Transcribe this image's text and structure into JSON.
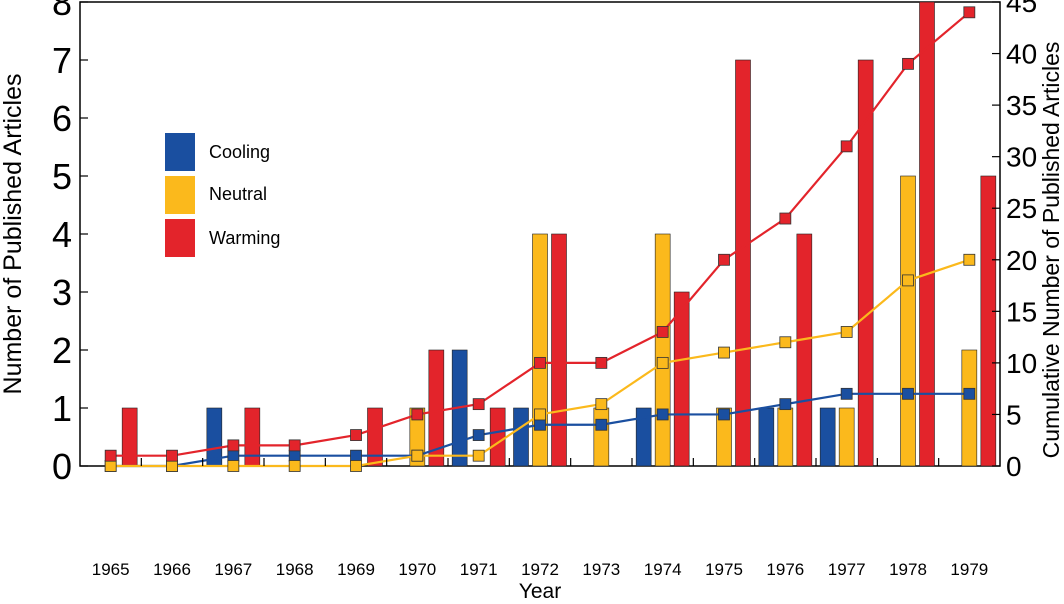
{
  "chart_data": {
    "type": "bar",
    "categories": [
      "1965",
      "1966",
      "1967",
      "1968",
      "1969",
      "1970",
      "1971",
      "1972",
      "1973",
      "1974",
      "1975",
      "1976",
      "1977",
      "1978",
      "1979"
    ],
    "xlabel": "Year",
    "ylabel": "Number of Published Articles",
    "y2label": "Cumulative Number of Published Articles",
    "ylim": [
      0,
      8
    ],
    "y2lim": [
      0,
      45
    ],
    "yticks": [
      "0",
      "1",
      "2",
      "3",
      "4",
      "5",
      "6",
      "7",
      "8"
    ],
    "y2ticks": [
      "0",
      "5",
      "10",
      "15",
      "20",
      "25",
      "30",
      "35",
      "40",
      "45"
    ],
    "legend_position": "upper-left",
    "series": [
      {
        "name": "Cooling",
        "color": "#1a4fa0",
        "values": [
          0,
          0,
          1,
          0,
          0,
          0,
          2,
          1,
          0,
          1,
          0,
          1,
          1,
          0,
          0
        ]
      },
      {
        "name": "Neutral",
        "color": "#fbb91c",
        "values": [
          0,
          0,
          0,
          0,
          0,
          1,
          0,
          4,
          1,
          4,
          1,
          1,
          1,
          5,
          2
        ]
      },
      {
        "name": "Warming",
        "color": "#e3242b",
        "values": [
          1,
          0,
          1,
          0,
          1,
          2,
          1,
          4,
          0,
          3,
          7,
          4,
          7,
          8,
          5
        ]
      }
    ],
    "cumulative_series": [
      {
        "name": "Cooling",
        "color": "#1a4fa0",
        "marker_fill": "#1a4fa0",
        "values": [
          0,
          0,
          1,
          1,
          1,
          1,
          3,
          4,
          4,
          5,
          5,
          6,
          7,
          7,
          7
        ]
      },
      {
        "name": "Neutral",
        "color": "#fbb91c",
        "marker_fill": "#fbb91c",
        "values": [
          0,
          0,
          0,
          0,
          0,
          1,
          1,
          5,
          6,
          10,
          11,
          12,
          13,
          18,
          20
        ]
      },
      {
        "name": "Warming",
        "color": "#e3242b",
        "marker_fill": "#e3242b",
        "values": [
          1,
          1,
          2,
          2,
          3,
          5,
          6,
          10,
          10,
          13,
          20,
          24,
          31,
          39,
          44
        ]
      }
    ]
  }
}
